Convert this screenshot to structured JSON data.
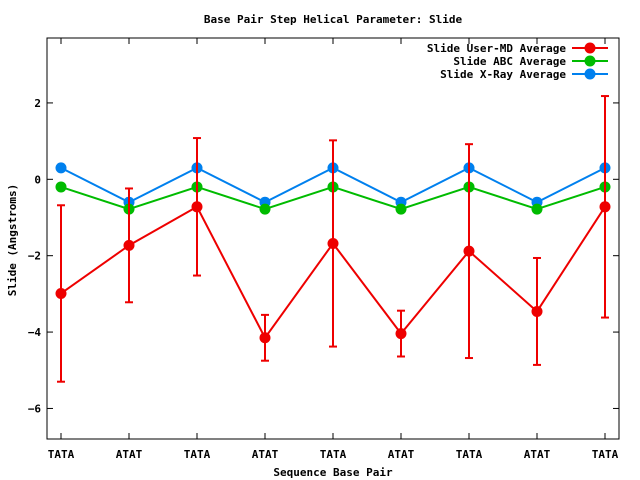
{
  "chart_data": {
    "type": "line",
    "title": "Base Pair Step Helical Parameter: Slide",
    "xlabel": "Sequence Base Pair",
    "ylabel": "Slide (Angstroms)",
    "ylim": [
      -6.8,
      3.7
    ],
    "yticks": [
      2,
      0,
      -2,
      -4,
      -6
    ],
    "ytick_labels": [
      "2",
      "0",
      "−2",
      "−4",
      "−6"
    ],
    "categories": [
      "TATA",
      "ATAT",
      "TATA",
      "ATAT",
      "TATA",
      "ATAT",
      "TATA",
      "ATAT",
      "TATA"
    ],
    "grid": false,
    "legend_position": "top-right",
    "series": [
      {
        "name": "Slide User-MD Average",
        "color": "#ee0000",
        "values": [
          -2.99,
          -1.73,
          -0.72,
          -4.15,
          -1.68,
          -4.04,
          -1.88,
          -3.46,
          -0.72
        ],
        "error": [
          2.31,
          1.49,
          1.8,
          0.6,
          2.7,
          0.6,
          2.8,
          1.4,
          2.9
        ]
      },
      {
        "name": "Slide ABC Average",
        "color": "#00bb00",
        "values": [
          -0.2,
          -0.78,
          -0.2,
          -0.78,
          -0.2,
          -0.78,
          -0.2,
          -0.78,
          -0.2
        ]
      },
      {
        "name": "Slide X-Ray Average",
        "color": "#0080ee",
        "values": [
          0.3,
          -0.6,
          0.3,
          -0.6,
          0.3,
          -0.6,
          0.3,
          -0.6,
          0.3
        ]
      }
    ]
  }
}
